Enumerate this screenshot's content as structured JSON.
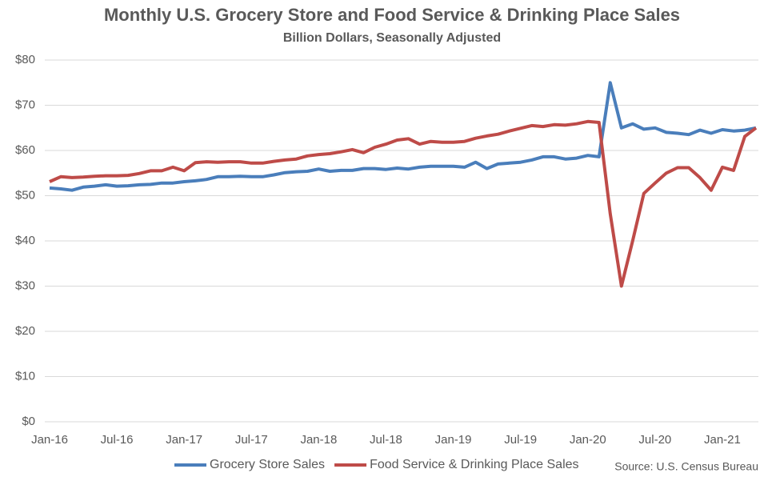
{
  "chart_data": {
    "type": "line",
    "title": "Monthly U.S. Grocery Store and Food Service & Drinking Place Sales",
    "subtitle": "Billion Dollars, Seasonally Adjusted",
    "source": "Source: U.S. Census Bureau",
    "categories": [
      "Jan-16",
      null,
      null,
      null,
      null,
      null,
      "Jul-16",
      null,
      null,
      null,
      null,
      null,
      "Jan-17",
      null,
      null,
      null,
      null,
      null,
      "Jul-17",
      null,
      null,
      null,
      null,
      null,
      "Jan-18",
      null,
      null,
      null,
      null,
      null,
      "Jul-18",
      null,
      null,
      null,
      null,
      null,
      "Jan-19",
      null,
      null,
      null,
      null,
      null,
      "Jul-19",
      null,
      null,
      null,
      null,
      null,
      "Jan-20",
      null,
      null,
      null,
      null,
      null,
      "Jul-20",
      null,
      null,
      null,
      null,
      null,
      "Jan-21",
      null,
      null,
      null
    ],
    "series": [
      {
        "name": "Grocery Store Sales",
        "color": "#4a7ebb",
        "values": [
          51.7,
          51.5,
          51.2,
          51.9,
          52.1,
          52.4,
          52.1,
          52.2,
          52.4,
          52.5,
          52.8,
          52.8,
          53.1,
          53.3,
          53.6,
          54.2,
          54.2,
          54.3,
          54.2,
          54.2,
          54.6,
          55.1,
          55.3,
          55.4,
          55.9,
          55.4,
          55.6,
          55.6,
          56.0,
          56.0,
          55.8,
          56.1,
          55.9,
          56.3,
          56.5,
          56.5,
          56.5,
          56.3,
          57.4,
          56.0,
          57.0,
          57.2,
          57.4,
          57.9,
          58.6,
          58.6,
          58.1,
          58.3,
          58.9,
          58.6,
          75.0,
          65.0,
          65.9,
          64.7,
          65.0,
          64.0,
          63.8,
          63.5,
          64.5,
          63.8,
          64.6,
          64.3,
          64.5,
          65.0
        ]
      },
      {
        "name": "Food Service & Drinking Place Sales",
        "color": "#be4b48",
        "values": [
          53.1,
          54.2,
          54.0,
          54.1,
          54.3,
          54.4,
          54.4,
          54.5,
          54.9,
          55.5,
          55.5,
          56.3,
          55.5,
          57.3,
          57.5,
          57.4,
          57.5,
          57.5,
          57.2,
          57.2,
          57.6,
          57.9,
          58.1,
          58.8,
          59.1,
          59.3,
          59.7,
          60.2,
          59.5,
          60.7,
          61.4,
          62.3,
          62.6,
          61.4,
          62.0,
          61.8,
          61.8,
          62.0,
          62.7,
          63.2,
          63.6,
          64.3,
          64.9,
          65.5,
          65.3,
          65.7,
          65.6,
          65.9,
          66.4,
          66.2,
          46.0,
          30.0,
          40.0,
          50.5,
          52.8,
          55.0,
          56.2,
          56.2,
          54.0,
          51.2,
          56.3,
          55.6,
          63.1,
          65.0
        ]
      }
    ],
    "ylim": [
      0,
      80
    ],
    "yticks": [
      {
        "value": 0,
        "label": "$0"
      },
      {
        "value": 10,
        "label": "$10"
      },
      {
        "value": 20,
        "label": "$20"
      },
      {
        "value": 30,
        "label": "$30"
      },
      {
        "value": 40,
        "label": "$40"
      },
      {
        "value": 50,
        "label": "$50"
      },
      {
        "value": 60,
        "label": "$60"
      },
      {
        "value": 70,
        "label": "$70"
      },
      {
        "value": 80,
        "label": "$80"
      }
    ],
    "grid": true
  }
}
